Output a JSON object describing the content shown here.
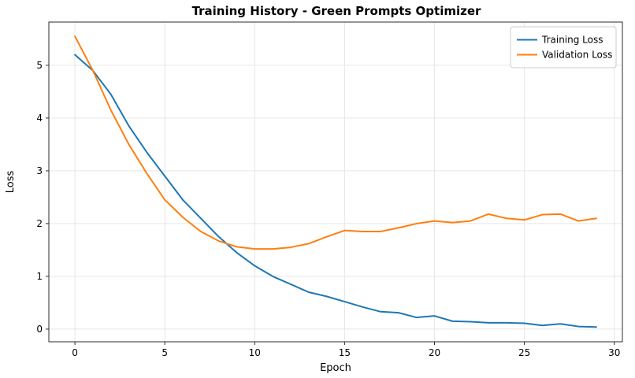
{
  "chart_data": {
    "type": "line",
    "title": "Training History - Green Prompts Optimizer",
    "xlabel": "Epoch",
    "ylabel": "Loss",
    "x": [
      0,
      1,
      2,
      3,
      4,
      5,
      6,
      7,
      8,
      9,
      10,
      11,
      12,
      13,
      14,
      15,
      16,
      17,
      18,
      19,
      20,
      21,
      22,
      23,
      24,
      25,
      26,
      27,
      28,
      29
    ],
    "series": [
      {
        "name": "Training Loss",
        "color": "#1f77b4",
        "values": [
          5.2,
          4.9,
          4.45,
          3.85,
          3.35,
          2.9,
          2.45,
          2.1,
          1.75,
          1.45,
          1.2,
          1.0,
          0.85,
          0.7,
          0.62,
          0.52,
          0.42,
          0.33,
          0.31,
          0.22,
          0.25,
          0.15,
          0.14,
          0.12,
          0.12,
          0.11,
          0.07,
          0.1,
          0.05,
          0.04
        ]
      },
      {
        "name": "Validation Loss",
        "color": "#ff7f0e",
        "values": [
          5.55,
          4.9,
          4.15,
          3.5,
          2.95,
          2.45,
          2.12,
          1.85,
          1.67,
          1.56,
          1.52,
          1.52,
          1.55,
          1.62,
          1.75,
          1.87,
          1.85,
          1.85,
          1.92,
          2.0,
          2.05,
          2.02,
          2.05,
          2.18,
          2.1,
          2.07,
          2.17,
          2.18,
          2.05,
          2.1
        ]
      }
    ],
    "xlim": [
      -1.45,
      30.45
    ],
    "ylim": [
      -0.24,
      5.82
    ],
    "xticks": [
      0,
      5,
      10,
      15,
      20,
      25,
      30
    ],
    "yticks": [
      0,
      1,
      2,
      3,
      4,
      5
    ],
    "grid": true,
    "grid_color": "#e6e6e6",
    "spine_color": "#2b2b2b",
    "legend_position": "upper right"
  }
}
